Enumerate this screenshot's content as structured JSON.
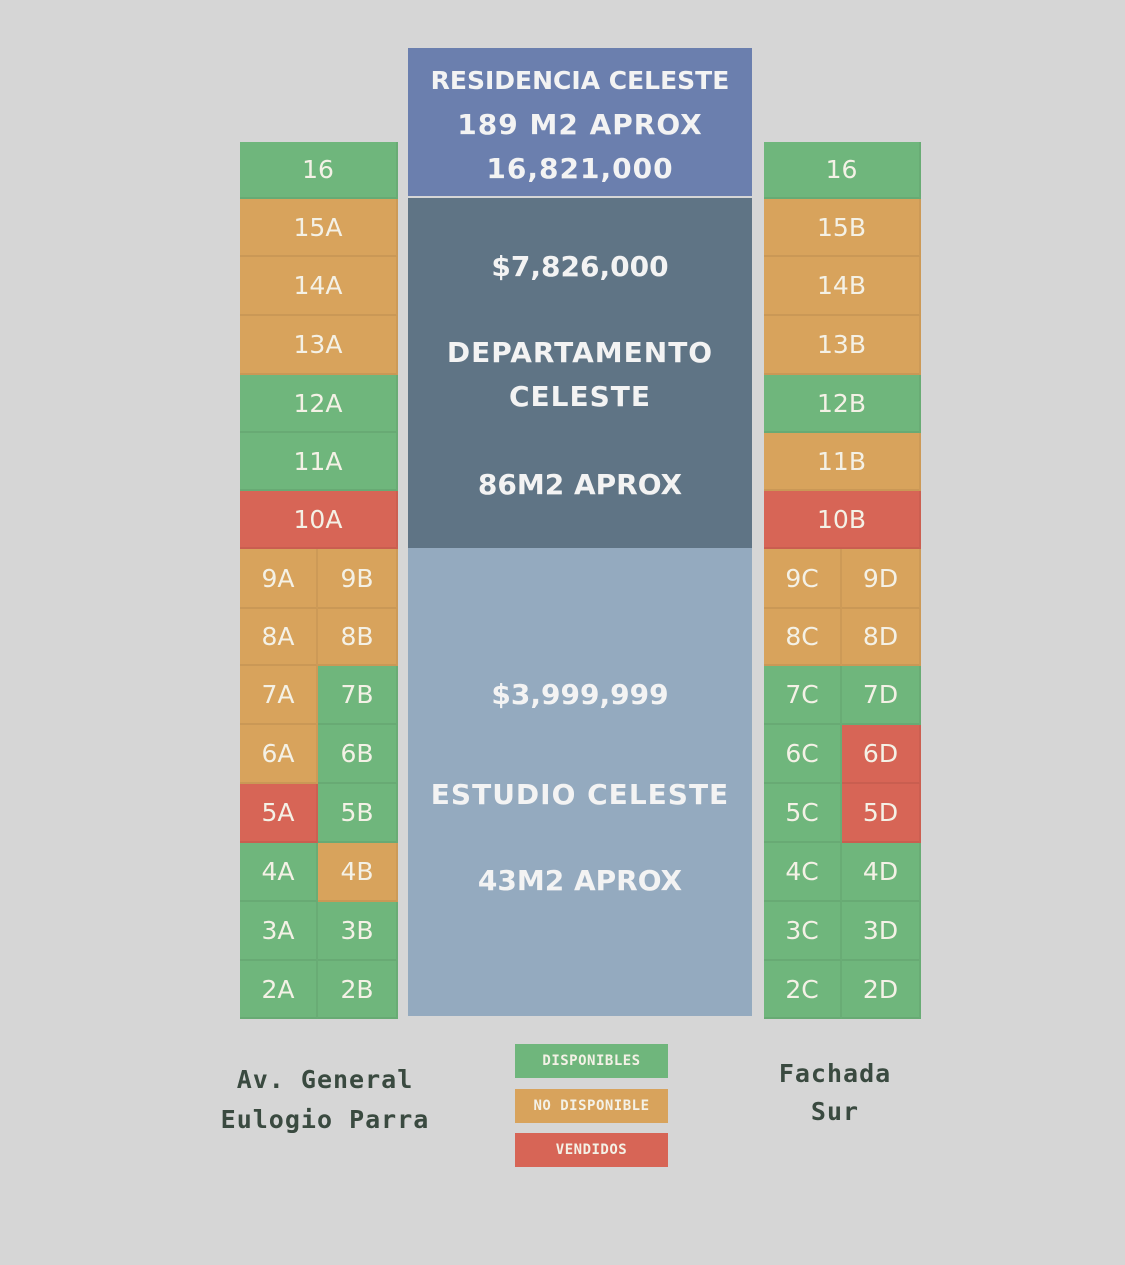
{
  "colors": {
    "disponible": "#6fb67c",
    "no_disponible": "#d8a35c",
    "vendido": "#d76556",
    "residencia": "#6b7fae",
    "departamento": "#5f7485",
    "estudio": "#94aabf"
  },
  "residencia": {
    "name": "RESIDENCIA CELESTE",
    "area": "189 M2 APROX",
    "price": "16,821,000"
  },
  "departamento": {
    "price": "$7,826,000",
    "name_line1": "DEPARTAMENTO",
    "name_line2": "CELESTE",
    "area": "86M2 APROX"
  },
  "estudio": {
    "price": "$3,999,999",
    "name": "ESTUDIO CELESTE",
    "area": "43M2 APROX"
  },
  "left_tower": {
    "top_units": [
      {
        "label": "16",
        "status": "disponible"
      },
      {
        "label": "15A",
        "status": "no_disponible"
      },
      {
        "label": "14A",
        "status": "no_disponible"
      },
      {
        "label": "13A",
        "status": "no_disponible"
      },
      {
        "label": "12A",
        "status": "disponible"
      },
      {
        "label": "11A",
        "status": "disponible"
      },
      {
        "label": "10A",
        "status": "vendido"
      }
    ],
    "pair_units": [
      [
        {
          "label": "9A",
          "status": "no_disponible"
        },
        {
          "label": "9B",
          "status": "no_disponible"
        }
      ],
      [
        {
          "label": "8A",
          "status": "no_disponible"
        },
        {
          "label": "8B",
          "status": "no_disponible"
        }
      ],
      [
        {
          "label": "7A",
          "status": "no_disponible"
        },
        {
          "label": "7B",
          "status": "disponible"
        }
      ],
      [
        {
          "label": "6A",
          "status": "no_disponible"
        },
        {
          "label": "6B",
          "status": "disponible"
        }
      ],
      [
        {
          "label": "5A",
          "status": "vendido"
        },
        {
          "label": "5B",
          "status": "disponible"
        }
      ],
      [
        {
          "label": "4A",
          "status": "disponible"
        },
        {
          "label": "4B",
          "status": "no_disponible"
        }
      ],
      [
        {
          "label": "3A",
          "status": "disponible"
        },
        {
          "label": "3B",
          "status": "disponible"
        }
      ],
      [
        {
          "label": "2A",
          "status": "disponible"
        },
        {
          "label": "2B",
          "status": "disponible"
        }
      ]
    ]
  },
  "right_tower": {
    "top_units": [
      {
        "label": "16",
        "status": "disponible"
      },
      {
        "label": "15B",
        "status": "no_disponible"
      },
      {
        "label": "14B",
        "status": "no_disponible"
      },
      {
        "label": "13B",
        "status": "no_disponible"
      },
      {
        "label": "12B",
        "status": "disponible"
      },
      {
        "label": "11B",
        "status": "no_disponible"
      },
      {
        "label": "10B",
        "status": "vendido"
      }
    ],
    "pair_units": [
      [
        {
          "label": "9C",
          "status": "no_disponible"
        },
        {
          "label": "9D",
          "status": "no_disponible"
        }
      ],
      [
        {
          "label": "8C",
          "status": "no_disponible"
        },
        {
          "label": "8D",
          "status": "no_disponible"
        }
      ],
      [
        {
          "label": "7C",
          "status": "disponible"
        },
        {
          "label": "7D",
          "status": "disponible"
        }
      ],
      [
        {
          "label": "6C",
          "status": "disponible"
        },
        {
          "label": "6D",
          "status": "vendido"
        }
      ],
      [
        {
          "label": "5C",
          "status": "disponible"
        },
        {
          "label": "5D",
          "status": "vendido"
        }
      ],
      [
        {
          "label": "4C",
          "status": "disponible"
        },
        {
          "label": "4D",
          "status": "disponible"
        }
      ],
      [
        {
          "label": "3C",
          "status": "disponible"
        },
        {
          "label": "3D",
          "status": "disponible"
        }
      ],
      [
        {
          "label": "2C",
          "status": "disponible"
        },
        {
          "label": "2D",
          "status": "disponible"
        }
      ]
    ]
  },
  "legend": [
    {
      "label": "DISPONIBLES",
      "status": "disponible"
    },
    {
      "label": "NO DISPONIBLE",
      "status": "no_disponible"
    },
    {
      "label": "VENDIDOS",
      "status": "vendido"
    }
  ],
  "labels": {
    "street_line1": "Av. General",
    "street_line2": "Eulogio Parra",
    "facade_line1": "Fachada",
    "facade_line2": "Sur"
  }
}
